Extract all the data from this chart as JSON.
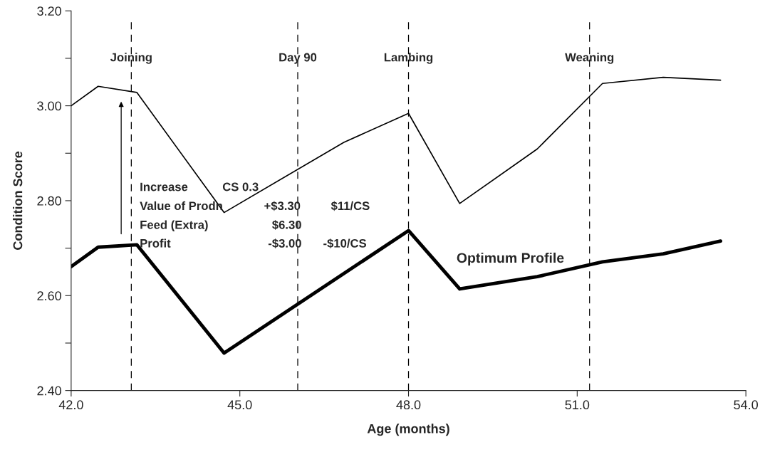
{
  "chart_data": {
    "type": "line",
    "xlabel": "Age (months)",
    "ylabel": "Condition Score",
    "series": [
      {
        "color": "#000000",
        "x": [
          42.0,
          42.48,
          43.17,
          44.72,
          46.85,
          48.0,
          48.91,
          50.29,
          51.45,
          52.53,
          53.55
        ],
        "values": [
          3.0,
          3.041,
          3.028,
          2.775,
          2.923,
          2.984,
          2.794,
          2.909,
          3.047,
          3.06,
          3.054
        ]
      },
      {
        "name": "Optimum Profile",
        "color": "#000000",
        "x": [
          42.0,
          42.48,
          43.17,
          44.72,
          48.0,
          48.91,
          50.29,
          51.45,
          52.53,
          53.55
        ],
        "values": [
          2.661,
          2.702,
          2.707,
          2.479,
          2.737,
          2.614,
          2.64,
          2.671,
          2.688,
          2.715
        ]
      }
    ],
    "xlim": [
      42,
      54
    ],
    "ylim": [
      2.4,
      3.2
    ],
    "xticks": [
      {
        "value": 42,
        "label": "42.0"
      },
      {
        "value": 45,
        "label": "45.0"
      },
      {
        "value": 48,
        "label": "48.0"
      },
      {
        "value": 51,
        "label": "51.0"
      },
      {
        "value": 54,
        "label": "54.0"
      }
    ],
    "yticks": [
      {
        "value": 2.4,
        "label": "2.40"
      },
      {
        "value": 2.5,
        "label": null
      },
      {
        "value": 2.6,
        "label": "2.60"
      },
      {
        "value": 2.7,
        "label": null
      },
      {
        "value": 2.8,
        "label": "2.80"
      },
      {
        "value": 2.9,
        "label": null
      },
      {
        "value": 3.0,
        "label": "3.00"
      },
      {
        "value": 3.1,
        "label": null
      },
      {
        "value": 3.2,
        "label": "3.20"
      }
    ],
    "ref_lines": [
      {
        "axis": "x",
        "value": 43.07,
        "label": "Joining",
        "color": "#000000",
        "line_style": "dashed"
      },
      {
        "axis": "x",
        "value": 46.03,
        "label": "Day 90",
        "color": "#000000",
        "line_style": "dashed"
      },
      {
        "axis": "x",
        "value": 48.0,
        "label": "Lambing",
        "color": "#000000",
        "line_style": "dashed"
      },
      {
        "axis": "x",
        "value": 51.22,
        "label": "Weaning",
        "color": "#000000",
        "line_style": "dashed"
      }
    ],
    "annotations": [
      "Increase",
      "CS 0.3",
      "Value of Prodn",
      "+$3.30",
      "$11/CS",
      "Feed (Extra)",
      "$6.30",
      "Profit",
      "-$3.00",
      "-$10/CS"
    ],
    "grid": false,
    "legend": false,
    "marker": "none",
    "line_style": "solid"
  }
}
